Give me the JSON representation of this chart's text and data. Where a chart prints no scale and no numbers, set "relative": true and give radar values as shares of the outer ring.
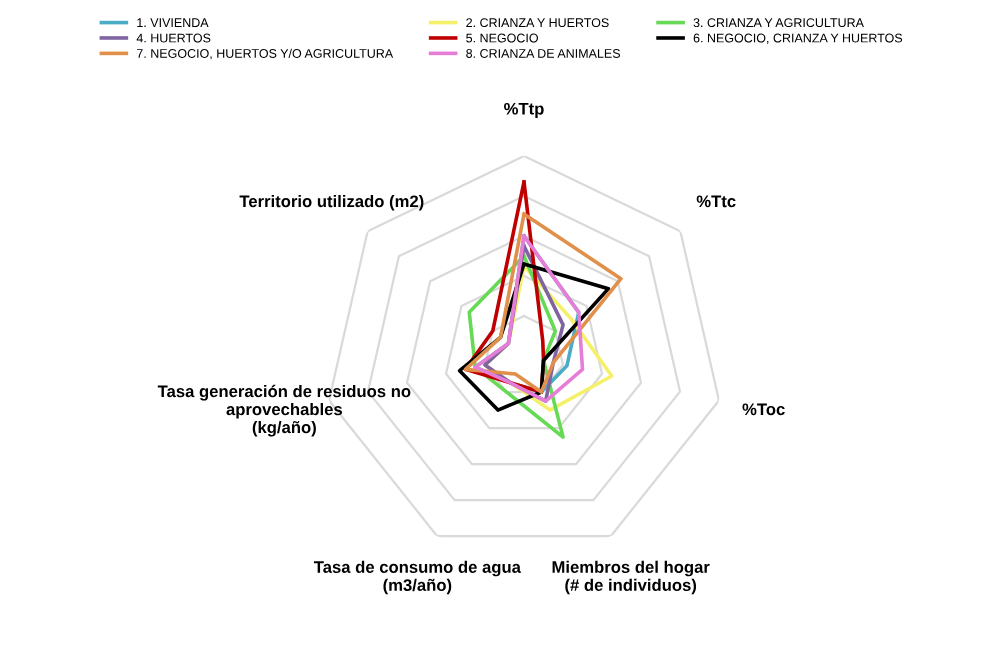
{
  "chart_data": {
    "type": "radar",
    "relative": true,
    "grid": true,
    "legend": "top",
    "line_style": "solid",
    "marker": "none",
    "categories": [
      "%Ttp",
      "%Ttc",
      "%Toc",
      "Miembros del hogar\n(# de individuos)",
      "Tasa de consumo de agua\n(m3/año)",
      "Tasa generación de residuos no\naprovechables\n(kg/año)",
      "Territorio utilizado (m2)"
    ],
    "series": [
      {
        "name": "1. VIVIENDA",
        "color": "#4bacc6",
        "values": [
          0.6,
          0.35,
          0.22,
          0.2,
          0.15,
          0.25,
          0.1
        ]
      },
      {
        "name": "2. CRIANZA Y HUERTOS",
        "color": "#f5f06a",
        "values": [
          0.45,
          0.3,
          0.45,
          0.3,
          0.15,
          0.2,
          0.1
        ]
      },
      {
        "name": "3. CRIANZA Y AGRICULTURA",
        "color": "#66d955",
        "values": [
          0.5,
          0.2,
          0.1,
          0.45,
          0.2,
          0.25,
          0.35
        ]
      },
      {
        "name": "4. HUERTOS",
        "color": "#8064a2",
        "values": [
          0.55,
          0.25,
          0.15,
          0.25,
          0.15,
          0.2,
          0.1
        ]
      },
      {
        "name": "5. NEGOCIO",
        "color": "#c00000",
        "values": [
          0.87,
          0.12,
          0.1,
          0.2,
          0.15,
          0.3,
          0.2
        ]
      },
      {
        "name": "6. NEGOCIO, CRIANZA Y HUERTOS",
        "color": "#000000",
        "values": [
          0.46,
          0.54,
          0.1,
          0.2,
          0.3,
          0.33,
          0.15
        ]
      },
      {
        "name": "7. NEGOCIO, HUERTOS Y/O AGRICULTURA",
        "color": "#e0904a",
        "values": [
          0.71,
          0.62,
          0.15,
          0.2,
          0.1,
          0.3,
          0.15
        ]
      },
      {
        "name": "8. CRIANZA DE ANIMALES",
        "color": "#e67ed8",
        "values": [
          0.6,
          0.35,
          0.3,
          0.25,
          0.15,
          0.25,
          0.1
        ]
      }
    ]
  }
}
